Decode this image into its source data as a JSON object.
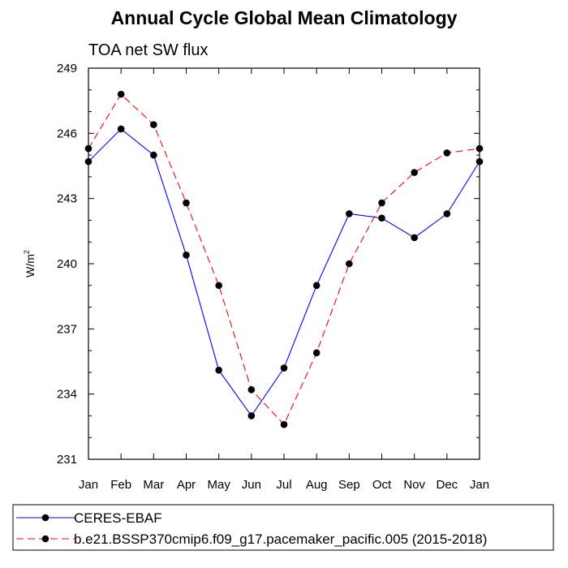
{
  "chart_data": {
    "type": "line",
    "title": "Annual Cycle Global Mean Climatology",
    "subtitle": "TOA net SW flux",
    "xlabel": "",
    "ylabel": "W/m",
    "ylabel_sup": "2",
    "ylim": [
      231,
      249
    ],
    "yticks": [
      231,
      234,
      237,
      240,
      243,
      246,
      249
    ],
    "yticklabels": [
      "231",
      "234",
      "237",
      "240",
      "243",
      "246",
      "249"
    ],
    "categories": [
      "Jan",
      "Feb",
      "Mar",
      "Apr",
      "May",
      "Jun",
      "Jul",
      "Aug",
      "Sep",
      "Oct",
      "Nov",
      "Dec",
      "Jan"
    ],
    "series": [
      {
        "name": "CERES-EBAF",
        "color": "#0000ff",
        "dash": "solid",
        "values": [
          244.7,
          246.2,
          245.0,
          240.4,
          235.1,
          233.0,
          235.2,
          239.0,
          242.3,
          242.1,
          241.2,
          242.3,
          244.7
        ]
      },
      {
        "name": "b.e21.BSSP370cmip6.f09_g17.pacemaker_pacific.005 (2015-2018)",
        "color": "#ff0000",
        "dash": "dashed",
        "values": [
          245.3,
          247.8,
          246.4,
          242.8,
          239.0,
          234.2,
          232.6,
          235.9,
          240.0,
          242.8,
          244.2,
          245.1,
          245.3
        ]
      }
    ],
    "legend_position": "bottom"
  }
}
